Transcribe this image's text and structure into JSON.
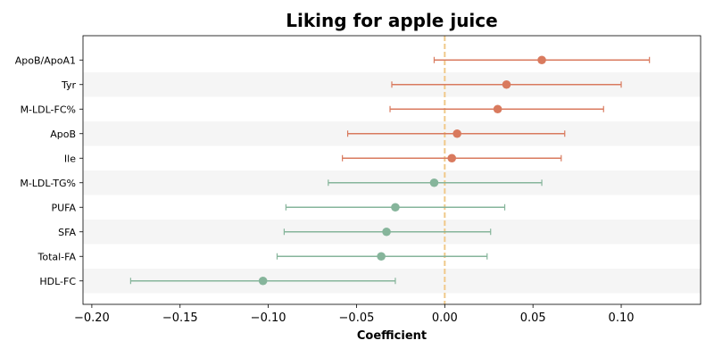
{
  "chart_data": {
    "type": "scatter",
    "title": "Liking for apple juice",
    "xlabel": "Coefficient",
    "ylabel": "",
    "xlim": [
      -0.205,
      0.145
    ],
    "xticks": [
      -0.2,
      -0.15,
      -0.1,
      -0.05,
      0.0,
      0.05,
      0.1
    ],
    "xtick_labels": [
      "−0.20",
      "−0.15",
      "−0.10",
      "−0.05",
      "0.00",
      "0.05",
      "0.10"
    ],
    "reference_line": 0.0,
    "categories": [
      "ApoB/ApoA1",
      "Tyr",
      "M-LDL-FC%",
      "ApoB",
      "Ile",
      "M-LDL-TG%",
      "PUFA",
      "SFA",
      "Total-FA",
      "HDL-FC"
    ],
    "estimates": [
      0.055,
      0.035,
      0.03,
      0.007,
      0.004,
      -0.006,
      -0.028,
      -0.033,
      -0.036,
      -0.103
    ],
    "ci_lower": [
      -0.006,
      -0.03,
      -0.031,
      -0.055,
      -0.058,
      -0.066,
      -0.09,
      -0.091,
      -0.095,
      -0.178
    ],
    "ci_upper": [
      0.116,
      0.1,
      0.09,
      0.068,
      0.066,
      0.055,
      0.034,
      0.026,
      0.024,
      -0.028
    ],
    "grid": false,
    "legend": "none",
    "colors": {
      "positive": "#d97a5e",
      "negative": "#86b59b",
      "reference_line": "#f0c98a",
      "band": "#f5f5f5"
    }
  }
}
